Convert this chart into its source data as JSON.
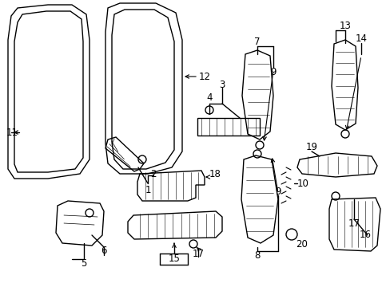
{
  "bg_color": "#ffffff",
  "fg_color": "#000000",
  "fig_width": 4.89,
  "fig_height": 3.6,
  "dpi": 100,
  "label_fs": 8.5,
  "lw": 1.0
}
